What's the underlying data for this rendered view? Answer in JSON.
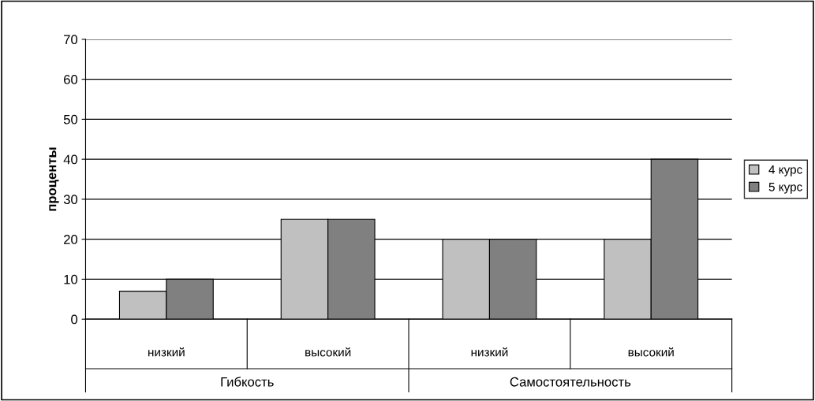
{
  "chart_data": {
    "type": "bar",
    "ylabel": "проценты",
    "categories": [
      "низкий",
      "высокий",
      "низкий",
      "высокий"
    ],
    "annotations": [
      "Гибкость",
      "Самостоятельность"
    ],
    "series": [
      {
        "name": "4 курс",
        "color": "#c0c0c0",
        "values": [
          7,
          25,
          20,
          20
        ]
      },
      {
        "name": "5 курс",
        "color": "#808080",
        "values": [
          10,
          25,
          20,
          40
        ]
      }
    ],
    "ylim": [
      0,
      70
    ],
    "yticks": [
      0,
      10,
      20,
      30,
      40,
      50,
      60,
      70
    ],
    "grid": "y",
    "legend": "right"
  }
}
